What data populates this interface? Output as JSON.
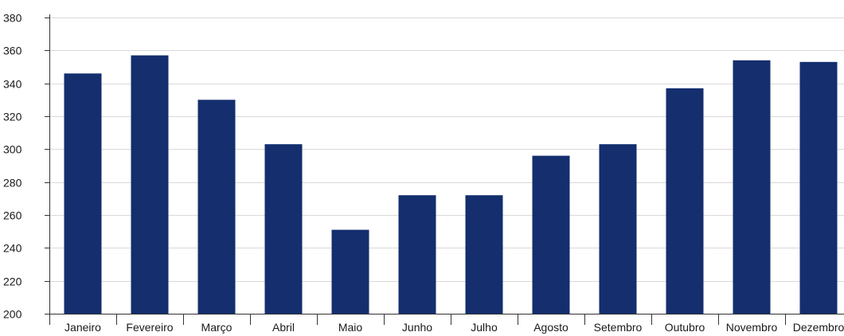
{
  "chart_data": {
    "type": "bar",
    "categories": [
      "Janeiro",
      "Fevereiro",
      "Março",
      "Abril",
      "Maio",
      "Junho",
      "Julho",
      "Agosto",
      "Setembro",
      "Outubro",
      "Novembro",
      "Dezembro"
    ],
    "values": [
      346,
      357,
      330,
      303,
      251,
      272,
      272,
      296,
      303,
      337,
      354,
      353
    ],
    "ylim": [
      200,
      380
    ],
    "yticks": [
      200,
      220,
      240,
      260,
      280,
      300,
      320,
      340,
      360,
      380
    ],
    "grid": true,
    "bar_color": "#142e6e",
    "grid_color": "#d9d9d9",
    "axis_color": "#333333"
  }
}
